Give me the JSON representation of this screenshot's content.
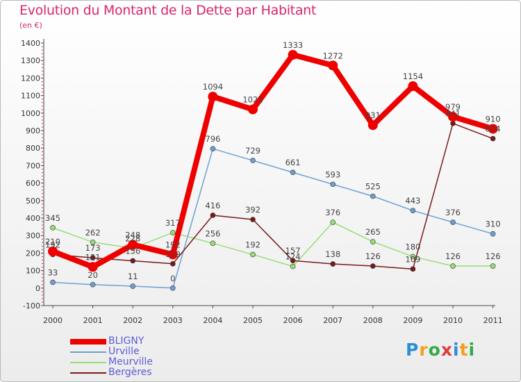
{
  "title": "Evolution du Montant de la Dette par Habitant",
  "subtitle": "(en €)",
  "logo_text": "Proxiti",
  "chart_data": {
    "type": "line",
    "x": [
      "2000",
      "2001",
      "2002",
      "2003",
      "2004",
      "2005",
      "2006",
      "2007",
      "2008",
      "2009",
      "2010",
      "2011"
    ],
    "ylim": [
      -100,
      1400
    ],
    "yticks": [
      -100,
      0,
      100,
      200,
      300,
      400,
      500,
      600,
      700,
      800,
      900,
      1000,
      1100,
      1200,
      1300,
      1400
    ],
    "grid": false,
    "legend_position": "bottom-left",
    "series": [
      {
        "name": "BLIGNY",
        "color": "#ee0000",
        "values": [
          210,
          121,
          248,
          192,
          1094,
          1021,
          1333,
          1272,
          931,
          1154,
          979,
          910
        ],
        "labels": [
          "210",
          "121",
          "248",
          "192",
          "1094",
          "1021",
          "1333",
          "1272",
          "931",
          "1154",
          "979",
          "910"
        ]
      },
      {
        "name": "Urville",
        "color": "#6f9fd0",
        "values": [
          33,
          20,
          11,
          0,
          796,
          729,
          661,
          593,
          525,
          443,
          376,
          310
        ],
        "labels": [
          "33",
          "20",
          "11",
          "0",
          "796",
          "729",
          "661",
          "593",
          "525",
          "443",
          "376",
          "310"
        ]
      },
      {
        "name": "Meurville",
        "color": "#99dd77",
        "values": [
          345,
          262,
          228,
          317,
          256,
          192,
          124,
          376,
          265,
          180,
          126,
          126
        ],
        "labels": [
          "345",
          "262",
          "228",
          "317",
          "256",
          "192",
          "124",
          "376",
          "265",
          "180",
          "126",
          "126"
        ]
      },
      {
        "name": "Bergères",
        "color": "#771a1a",
        "values": [
          192,
          173,
          156,
          139,
          416,
          392,
          157,
          138,
          126,
          109,
          941,
          854
        ],
        "labels": [
          "192",
          "173",
          "156",
          "139",
          "416",
          "392",
          "157",
          "138",
          "126",
          "109",
          "941",
          "854"
        ]
      }
    ]
  }
}
